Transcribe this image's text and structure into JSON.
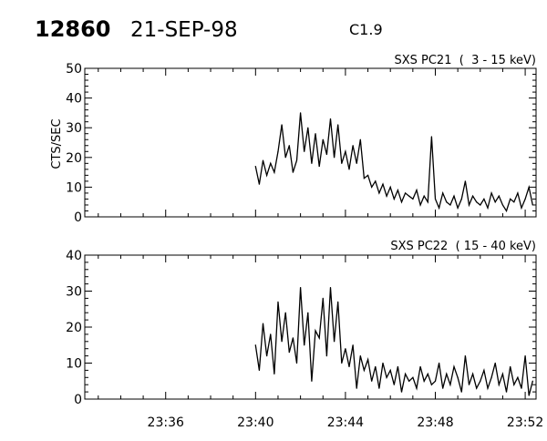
{
  "header": {
    "event_id": "12860",
    "date": "21-SEP-98",
    "goes_class": "C1.9"
  },
  "chart_data": [
    {
      "type": "line",
      "title": "SXS PC21  (  3 - 15 keV)",
      "ylabel": "CTS/SEC",
      "xlabel": "",
      "ylim": [
        0,
        50
      ],
      "yticks": [
        "0",
        "10",
        "20",
        "30",
        "40",
        "50"
      ],
      "xlim": [
        "23:32:24",
        "23:52:29"
      ],
      "xticks": [],
      "grid": false,
      "color": "#000000",
      "x": [
        "23:40:00",
        "23:40:10",
        "23:40:20",
        "23:40:30",
        "23:40:40",
        "23:40:50",
        "23:41:00",
        "23:41:10",
        "23:41:20",
        "23:41:30",
        "23:41:40",
        "23:41:50",
        "23:42:00",
        "23:42:10",
        "23:42:20",
        "23:42:30",
        "23:42:40",
        "23:42:50",
        "23:43:00",
        "23:43:10",
        "23:43:20",
        "23:43:30",
        "23:43:40",
        "23:43:50",
        "23:44:00",
        "23:44:10",
        "23:44:20",
        "23:44:30",
        "23:44:40",
        "23:44:50",
        "23:45:00",
        "23:45:10",
        "23:45:20",
        "23:45:30",
        "23:45:40",
        "23:45:50",
        "23:46:00",
        "23:46:10",
        "23:46:20",
        "23:46:30",
        "23:46:40",
        "23:46:50",
        "23:47:00",
        "23:47:10",
        "23:47:20",
        "23:47:30",
        "23:47:40",
        "23:47:50",
        "23:48:00",
        "23:48:10",
        "23:48:20",
        "23:48:30",
        "23:48:40",
        "23:48:50",
        "23:49:00",
        "23:49:10",
        "23:49:20",
        "23:49:30",
        "23:49:40",
        "23:49:50",
        "23:50:00",
        "23:50:10",
        "23:50:20",
        "23:50:30",
        "23:50:40",
        "23:50:50",
        "23:51:00",
        "23:51:10",
        "23:51:20",
        "23:51:30",
        "23:51:40",
        "23:51:50",
        "23:52:00",
        "23:52:10",
        "23:52:20"
      ],
      "values": [
        17,
        11,
        19,
        14,
        18,
        15,
        22,
        31,
        20,
        24,
        15,
        19,
        35,
        22,
        30,
        18,
        28,
        17,
        26,
        21,
        33,
        20,
        31,
        18,
        22,
        16,
        24,
        18,
        26,
        13,
        14,
        10,
        12,
        8,
        11,
        7,
        10,
        6,
        9,
        5,
        8,
        7,
        6,
        9,
        4,
        7,
        5,
        27,
        6,
        3,
        8,
        5,
        4,
        7,
        3,
        6,
        12,
        4,
        7,
        5,
        4,
        6,
        3,
        8,
        5,
        7,
        4,
        2,
        6,
        5,
        8,
        3,
        6,
        10,
        4
      ]
    },
    {
      "type": "line",
      "title": "SXS PC22  ( 15 - 40 keV)",
      "ylabel": "",
      "xlabel": "",
      "ylim": [
        0,
        40
      ],
      "yticks": [
        "0",
        "10",
        "20",
        "30",
        "40"
      ],
      "xlim": [
        "23:32:24",
        "23:52:29"
      ],
      "xticks": [
        "23:36",
        "23:40",
        "23:44",
        "23:48",
        "23:52"
      ],
      "grid": false,
      "color": "#000000",
      "x": [
        "23:40:00",
        "23:40:10",
        "23:40:20",
        "23:40:30",
        "23:40:40",
        "23:40:50",
        "23:41:00",
        "23:41:10",
        "23:41:20",
        "23:41:30",
        "23:41:40",
        "23:41:50",
        "23:42:00",
        "23:42:10",
        "23:42:20",
        "23:42:30",
        "23:42:40",
        "23:42:50",
        "23:43:00",
        "23:43:10",
        "23:43:20",
        "23:43:30",
        "23:43:40",
        "23:43:50",
        "23:44:00",
        "23:44:10",
        "23:44:20",
        "23:44:30",
        "23:44:40",
        "23:44:50",
        "23:45:00",
        "23:45:10",
        "23:45:20",
        "23:45:30",
        "23:45:40",
        "23:45:50",
        "23:46:00",
        "23:46:10",
        "23:46:20",
        "23:46:30",
        "23:46:40",
        "23:46:50",
        "23:47:00",
        "23:47:10",
        "23:47:20",
        "23:47:30",
        "23:47:40",
        "23:47:50",
        "23:48:00",
        "23:48:10",
        "23:48:20",
        "23:48:30",
        "23:48:40",
        "23:48:50",
        "23:49:00",
        "23:49:10",
        "23:49:20",
        "23:49:30",
        "23:49:40",
        "23:49:50",
        "23:50:00",
        "23:50:10",
        "23:50:20",
        "23:50:30",
        "23:50:40",
        "23:50:50",
        "23:51:00",
        "23:51:10",
        "23:51:20",
        "23:51:30",
        "23:51:40",
        "23:51:50",
        "23:52:00",
        "23:52:10",
        "23:52:20"
      ],
      "values": [
        15,
        8,
        21,
        12,
        18,
        7,
        27,
        16,
        24,
        13,
        17,
        10,
        31,
        15,
        24,
        5,
        19,
        17,
        28,
        12,
        31,
        16,
        27,
        10,
        14,
        9,
        15,
        3,
        12,
        8,
        11,
        5,
        9,
        3,
        10,
        6,
        8,
        4,
        9,
        2,
        7,
        5,
        6,
        3,
        9,
        5,
        7,
        4,
        5,
        10,
        3,
        7,
        4,
        9,
        6,
        2,
        12,
        4,
        7,
        3,
        5,
        8,
        3,
        6,
        10,
        4,
        7,
        2,
        9,
        4,
        6,
        3,
        12,
        1,
        5
      ]
    }
  ]
}
